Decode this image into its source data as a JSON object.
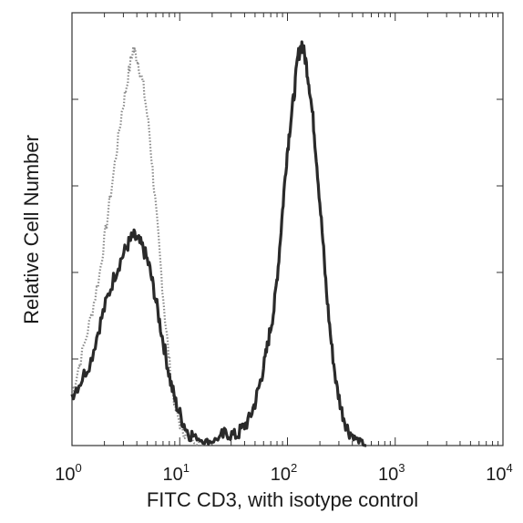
{
  "chart_data": {
    "type": "line",
    "title": "",
    "xlabel": "FITC CD3, with isotype control",
    "ylabel": "Relative Cell Number",
    "xscale": "log",
    "xlim": [
      1,
      10000
    ],
    "ylim": [
      0,
      1
    ],
    "grid": false,
    "x_tick_labels": [
      {
        "base": "10",
        "exp": "0",
        "value": 1
      },
      {
        "base": "10",
        "exp": "1",
        "value": 10
      },
      {
        "base": "10",
        "exp": "2",
        "value": 100
      },
      {
        "base": "10",
        "exp": "3",
        "value": 1000
      },
      {
        "base": "10",
        "exp": "4",
        "value": 10000
      }
    ],
    "series": [
      {
        "style": "dotted-gray",
        "color": "#8a8a8a",
        "x": [
          1.0,
          1.2,
          1.5,
          1.8,
          2.1,
          2.5,
          2.9,
          3.3,
          3.7,
          4.1,
          4.6,
          5.2,
          5.8,
          6.5,
          7.3,
          8.2,
          9.2,
          10.5,
          12,
          14,
          17
        ],
        "y": [
          0.12,
          0.2,
          0.3,
          0.4,
          0.52,
          0.66,
          0.78,
          0.86,
          0.93,
          0.9,
          0.84,
          0.74,
          0.6,
          0.45,
          0.3,
          0.17,
          0.08,
          0.04,
          0.02,
          0.01,
          0.0
        ]
      },
      {
        "style": "solid-dark",
        "color": "#2a2a2a",
        "x": [
          1.0,
          1.2,
          1.5,
          1.8,
          2.1,
          2.5,
          2.9,
          3.3,
          3.7,
          4.1,
          4.6,
          5.2,
          5.8,
          6.5,
          7.3,
          8.2,
          9.2,
          10.5,
          12,
          14,
          17,
          20,
          24,
          28,
          33,
          38,
          44,
          50,
          56,
          62,
          68,
          75,
          82,
          90,
          98,
          106,
          115,
          125,
          136,
          148,
          160,
          175,
          190,
          210,
          230,
          255,
          285,
          320,
          360,
          410,
          470,
          540
        ],
        "y": [
          0.12,
          0.15,
          0.2,
          0.28,
          0.34,
          0.4,
          0.44,
          0.47,
          0.49,
          0.48,
          0.46,
          0.42,
          0.36,
          0.29,
          0.22,
          0.15,
          0.1,
          0.06,
          0.03,
          0.02,
          0.01,
          0.01,
          0.02,
          0.03,
          0.02,
          0.04,
          0.06,
          0.1,
          0.15,
          0.2,
          0.26,
          0.32,
          0.42,
          0.55,
          0.67,
          0.75,
          0.82,
          0.91,
          0.94,
          0.9,
          0.84,
          0.75,
          0.64,
          0.5,
          0.36,
          0.24,
          0.14,
          0.08,
          0.04,
          0.02,
          0.01,
          0.0
        ]
      }
    ]
  }
}
